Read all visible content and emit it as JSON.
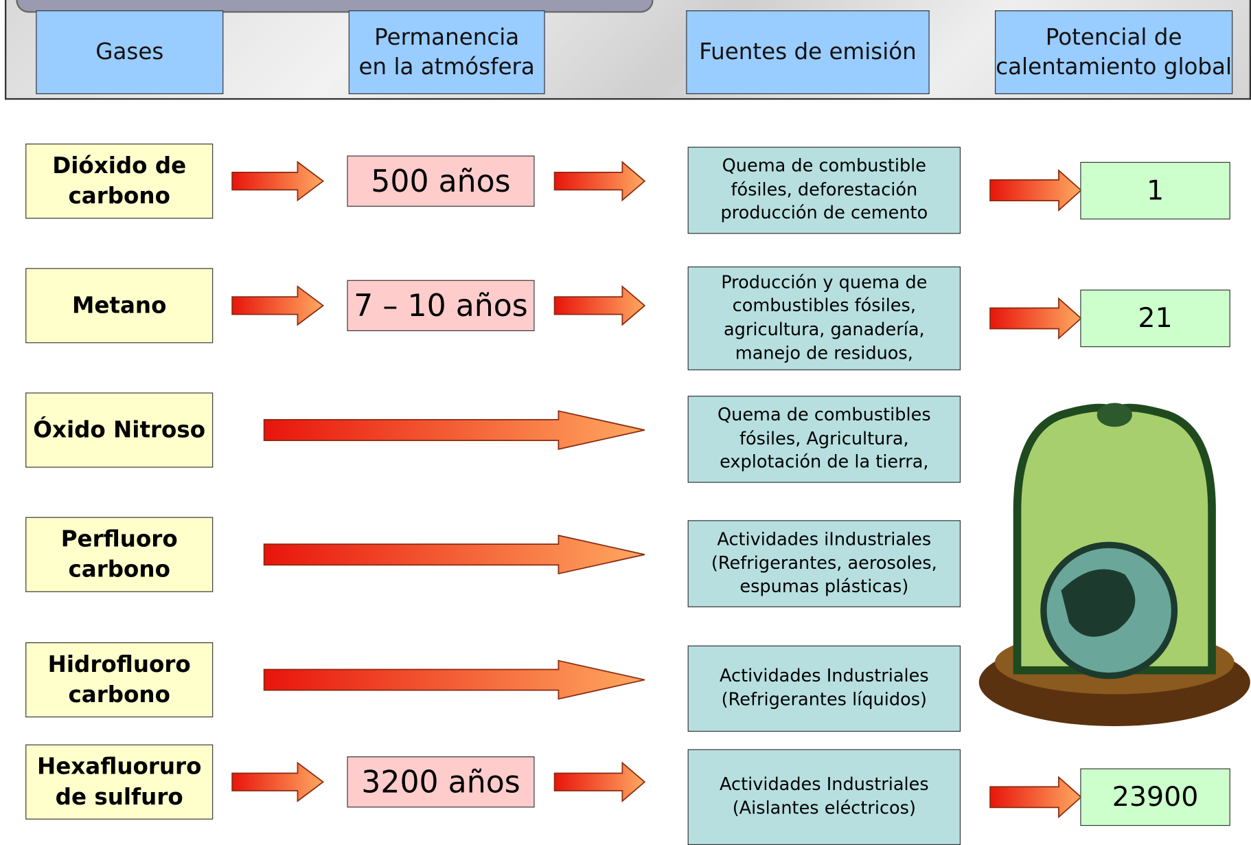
{
  "header": {
    "columns": [
      "Gases",
      "Permanencia\nen la atmósfera",
      "Fuentes de emisión",
      "Potencial de\ncalentamiento global"
    ]
  },
  "rows": [
    {
      "gas": "Dióxido de\ncarbono",
      "permanence": "500 años",
      "sources": "Quema de combustible\nfósiles,  deforestación\nproducción de cemento",
      "potential": 1
    },
    {
      "gas": "Metano",
      "permanence": "7 – 10 años",
      "sources": "Producción y quema de\ncombustibles fósiles,\nagricultura,  ganadería,\nmanejo de residuos,",
      "potential": 21
    },
    {
      "gas": "Óxido Nitroso",
      "sources": "Quema de combustibles\nfósiles, Agricultura,\nexplotación de la tierra,"
    },
    {
      "gas": "Perfluoro\ncarbono",
      "sources": "Actividades iIndustriales\n(Refrigerantes, aerosoles,\nespumas plásticas)"
    },
    {
      "gas": "Hidrofluoro\ncarbono",
      "sources": "Actividades Industriales\n(Refrigerantes líquidos)"
    },
    {
      "gas": "Hexafluoruro\nde sulfuro",
      "permanence": "3200 años",
      "sources": "Actividades Industriales\n(Aislantes eléctricos)",
      "potential": 23900
    }
  ]
}
